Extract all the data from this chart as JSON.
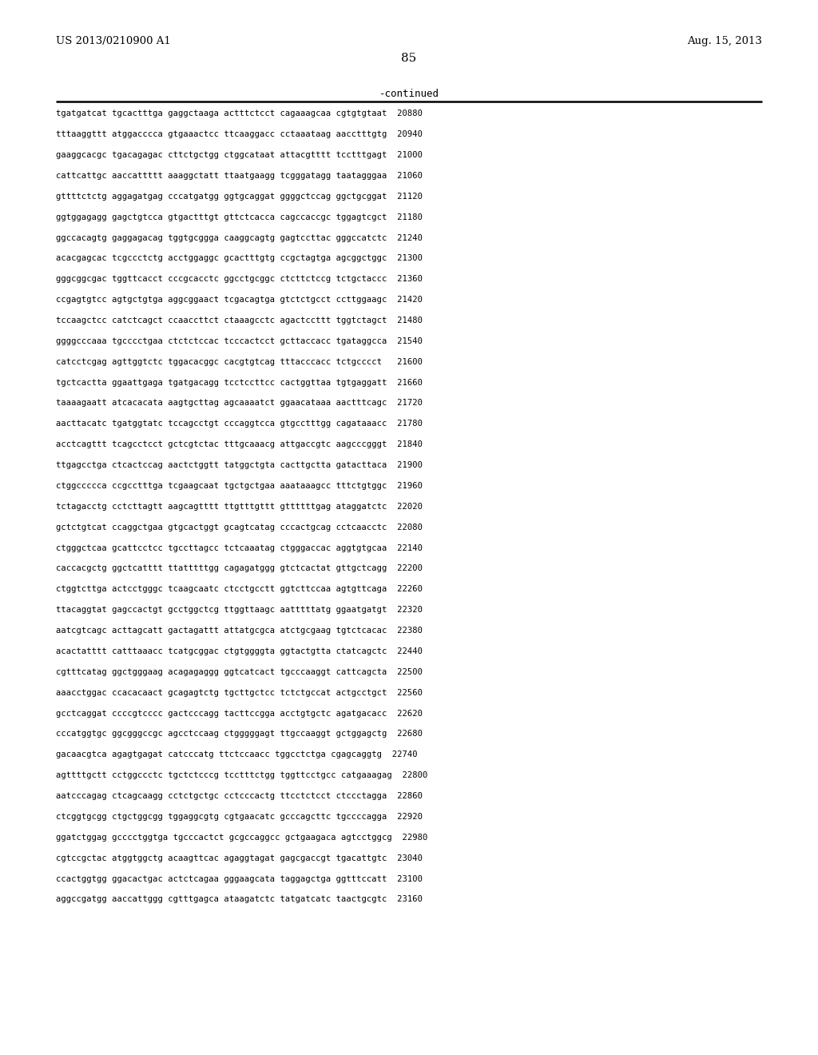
{
  "header_left": "US 2013/0210900 A1",
  "header_right": "Aug. 15, 2013",
  "page_number": "85",
  "continued_label": "-continued",
  "background_color": "#ffffff",
  "text_color": "#000000",
  "sequence_lines": [
    "tgatgatcat tgcactttga gaggctaaga actttctcct cagaaagcaa cgtgtgtaat  20880",
    "tttaaggttt atggacccca gtgaaactcc ttcaaggacc cctaaataag aacctttgtg  20940",
    "gaaggcacgc tgacagagac cttctgctgg ctggcataat attacgtttt tcctttgagt  21000",
    "cattcattgc aaccattttt aaaggctatt ttaatgaagg tcgggatagg taatagggaa  21060",
    "gttttctctg aggagatgag cccatgatgg ggtgcaggat ggggctccag ggctgcggat  21120",
    "ggtggagagg gagctgtcca gtgactttgt gttctcacca cagccaccgc tggagtcgct  21180",
    "ggccacagtg gaggagacag tggtgcggga caaggcagtg gagtccttac gggccatctc  21240",
    "acacgagcac tcgccctctg acctggaggc gcactttgtg ccgctagtga agcggctggc  21300",
    "gggcggcgac tggttcacct cccgcacctc ggcctgcggc ctcttctccg tctgctaccc  21360",
    "ccgagtgtcc agtgctgtga aggcggaact tcgacagtga gtctctgcct ccttggaagc  21420",
    "tccaagctcc catctcagct ccaaccttct ctaaagcctc agactccttt tggtctagct  21480",
    "ggggcccaaa tgcccctgaa ctctctccac tcccactcct gcttaccacc tgataggcca  21540",
    "catcctcgag agttggtctc tggacacggc cacgtgtcag tttacccacc tctgcccct   21600",
    "tgctcactta ggaattgaga tgatgacagg tcctccttcc cactggttaa tgtgaggatt  21660",
    "taaaagaatt atcacacata aagtgcttag agcaaaatct ggaacataaa aactttcagc  21720",
    "aacttacatc tgatggtatc tccagcctgt cccaggtcca gtgcctttgg cagataaacc  21780",
    "acctcagttt tcagcctcct gctcgtctac tttgcaaacg attgaccgtc aagcccgggt  21840",
    "ttgagcctga ctcactccag aactctggtt tatggctgta cacttgctta gatacttaca  21900",
    "ctggccccca ccgcctttga tcgaagcaat tgctgctgaa aaataaagcc tttctgtggc  21960",
    "tctagacctg cctcttagtt aagcagtttt ttgtttgttt gttttttgag ataggatctc  22020",
    "gctctgtcat ccaggctgaa gtgcactggt gcagtcatag cccactgcag cctcaacctc  22080",
    "ctgggctcaa gcattcctcc tgccttagcc tctcaaatag ctgggaccac aggtgtgcaa  22140",
    "caccacgctg ggctcatttt ttatttttgg cagagatggg gtctcactat gttgctcagg  22200",
    "ctggtcttga actcctgggc tcaagcaatc ctcctgcctt ggtcttccaa agtgttcaga  22260",
    "ttacaggtat gagccactgt gcctggctcg ttggttaagc aatttttatg ggaatgatgt  22320",
    "aatcgtcagc acttagcatt gactagattt attatgcgca atctgcgaag tgtctcacac  22380",
    "acactatttt catttaaacc tcatgcggac ctgtggggta ggtactgtta ctatcagctc  22440",
    "cgtttcatag ggctgggaag acagagaggg ggtcatcact tgcccaaggt cattcagcta  22500",
    "aaacctggac ccacacaact gcagagtctg tgcttgctcc tctctgccat actgcctgct  22560",
    "gcctcaggat ccccgtcccc gactcccagg tacttccgga acctgtgctc agatgacacc  22620",
    "cccatggtgc ggcgggccgc agcctccaag ctgggggagt ttgccaaggt gctggagctg  22680",
    "gacaacgtca agagtgagat catcccatg ttctccaacc tggcctctga cgagcaggtg  22740",
    "agttttgctt cctggccctc tgctctcccg tcctttctgg tggttcctgcc catgaaagag  22800",
    "aatcccagag ctcagcaagg cctctgctgc cctcccactg ttcctctcct ctccctagga  22860",
    "ctcggtgcgg ctgctggcgg tggaggcgtg cgtgaacatc gcccagcttc tgccccagga  22920",
    "ggatctggag gcccctggtga tgcccactct gcgccaggcc gctgaagaca agtcctggcg  22980",
    "cgtccgctac atggtggctg acaagttcac agaggtagat gagcgaccgt tgacattgtc  23040",
    "ccactggtgg ggacactgac actctcagaa gggaagcata taggagctga ggtttccatt  23100",
    "aggccgatgg aaccattggg cgtttgagca ataagatctc tatgatcatc taactgcgtc  23160"
  ]
}
